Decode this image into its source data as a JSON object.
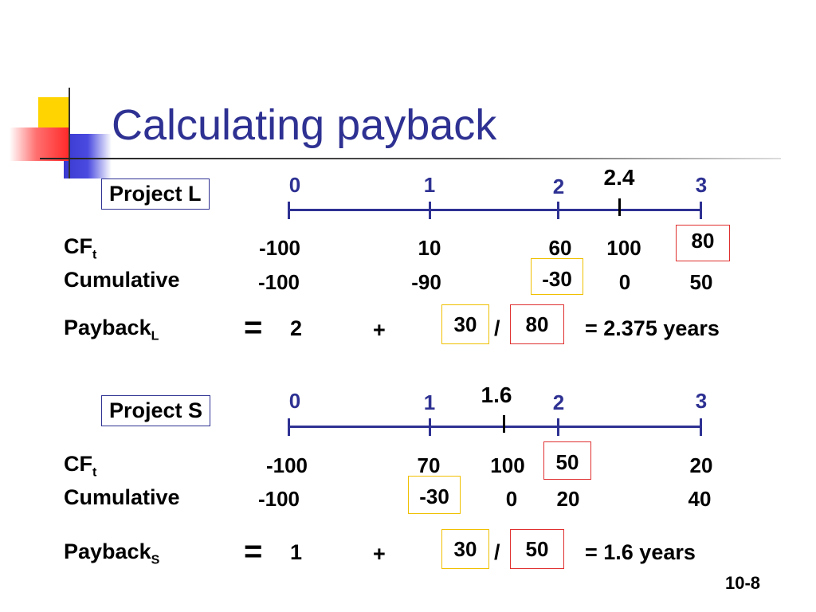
{
  "title": "Calculating payback",
  "slide_number": "10-8",
  "projects": [
    {
      "label": "Project L",
      "ticks": [
        "0",
        "1",
        "2",
        "3"
      ],
      "marker": "2.4",
      "cf_label": "CF",
      "cf_sub": "t",
      "cum_label": "Cumulative",
      "cf": [
        "-100",
        "10",
        "60",
        "100",
        "80"
      ],
      "cumulative": [
        "-100",
        "-90",
        "-30",
        "0",
        "50"
      ],
      "payback_label": "Payback",
      "payback_sub": "L",
      "eq": "=",
      "base": "2",
      "plus": "+",
      "numer": "30",
      "slash": "/",
      "denom": "80",
      "result": "=  2.375 years"
    },
    {
      "label": "Project S",
      "ticks": [
        "0",
        "1",
        "2",
        "3"
      ],
      "marker": "1.6",
      "cf_label": "CF",
      "cf_sub": "t",
      "cum_label": "Cumulative",
      "cf": [
        "-100",
        "70",
        "100",
        "50",
        "20"
      ],
      "cumulative": [
        "-100",
        "-30",
        "0",
        "20",
        "40"
      ],
      "payback_label": "Payback",
      "payback_sub": "S",
      "eq": "=",
      "base": "1",
      "plus": "+",
      "numer": "30",
      "slash": "/",
      "denom": "50",
      "result": "=  1.6 years"
    }
  ]
}
